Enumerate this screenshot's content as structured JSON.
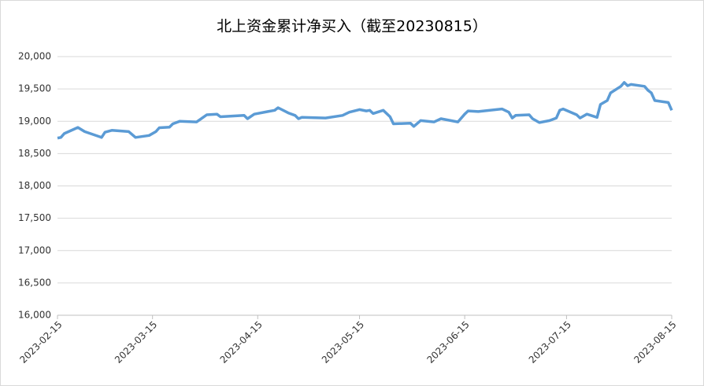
{
  "chart_data": {
    "type": "line",
    "title": "北上资金累计净买入（截至20230815）",
    "x": [
      "2023-02-15",
      "2023-02-16",
      "2023-02-17",
      "2023-02-21",
      "2023-02-23",
      "2023-02-28",
      "2023-03-01",
      "2023-03-03",
      "2023-03-08",
      "2023-03-10",
      "2023-03-14",
      "2023-03-16",
      "2023-03-17",
      "2023-03-20",
      "2023-03-21",
      "2023-03-23",
      "2023-03-28",
      "2023-03-31",
      "2023-04-03",
      "2023-04-04",
      "2023-04-11",
      "2023-04-12",
      "2023-04-14",
      "2023-04-18",
      "2023-04-20",
      "2023-04-21",
      "2023-04-24",
      "2023-04-26",
      "2023-04-27",
      "2023-04-28",
      "2023-05-05",
      "2023-05-10",
      "2023-05-12",
      "2023-05-15",
      "2023-05-17",
      "2023-05-18",
      "2023-05-19",
      "2023-05-22",
      "2023-05-24",
      "2023-05-25",
      "2023-05-30",
      "2023-05-31",
      "2023-06-02",
      "2023-06-06",
      "2023-06-08",
      "2023-06-13",
      "2023-06-15",
      "2023-06-16",
      "2023-06-19",
      "2023-06-26",
      "2023-06-28",
      "2023-06-29",
      "2023-06-30",
      "2023-07-04",
      "2023-07-05",
      "2023-07-07",
      "2023-07-10",
      "2023-07-12",
      "2023-07-13",
      "2023-07-14",
      "2023-07-18",
      "2023-07-19",
      "2023-07-21",
      "2023-07-24",
      "2023-07-25",
      "2023-07-27",
      "2023-07-28",
      "2023-07-31",
      "2023-08-01",
      "2023-08-02",
      "2023-08-03",
      "2023-08-07",
      "2023-08-08",
      "2023-08-09",
      "2023-08-10",
      "2023-08-14",
      "2023-08-15"
    ],
    "series": [
      {
        "color": "#5b9bd5",
        "values": [
          18740,
          18750,
          18810,
          18905,
          18840,
          18750,
          18830,
          18860,
          18840,
          18750,
          18780,
          18840,
          18900,
          18910,
          18960,
          19000,
          18990,
          19100,
          19110,
          19070,
          19090,
          19040,
          19110,
          19150,
          19170,
          19210,
          19130,
          19090,
          19040,
          19060,
          19050,
          19090,
          19140,
          19180,
          19160,
          19170,
          19120,
          19170,
          19070,
          18960,
          18970,
          18920,
          19010,
          18990,
          19040,
          18990,
          19110,
          19160,
          19150,
          19190,
          19140,
          19050,
          19090,
          19100,
          19040,
          18980,
          19010,
          19050,
          19170,
          19190,
          19100,
          19050,
          19110,
          19060,
          19260,
          19320,
          19440,
          19540,
          19600,
          19550,
          19570,
          19540,
          19480,
          19440,
          19320,
          19290,
          19170
        ]
      }
    ],
    "xlim": [
      "2023-02-15",
      "2023-08-15"
    ],
    "xticks": [
      "2023-02-15",
      "2023-03-15",
      "2023-04-15",
      "2023-05-15",
      "2023-06-15",
      "2023-07-15",
      "2023-08-15"
    ],
    "ylim": [
      16000,
      20000
    ],
    "yticks": [
      {
        "value": 16000,
        "label": "16,000"
      },
      {
        "value": 16500,
        "label": "16,500"
      },
      {
        "value": 17000,
        "label": "17,000"
      },
      {
        "value": 17500,
        "label": "17,500"
      },
      {
        "value": 18000,
        "label": "18,000"
      },
      {
        "value": 18500,
        "label": "18,500"
      },
      {
        "value": 19000,
        "label": "19,000"
      },
      {
        "value": 19500,
        "label": "19,500"
      },
      {
        "value": 20000,
        "label": "20,000"
      }
    ],
    "grid": true
  }
}
